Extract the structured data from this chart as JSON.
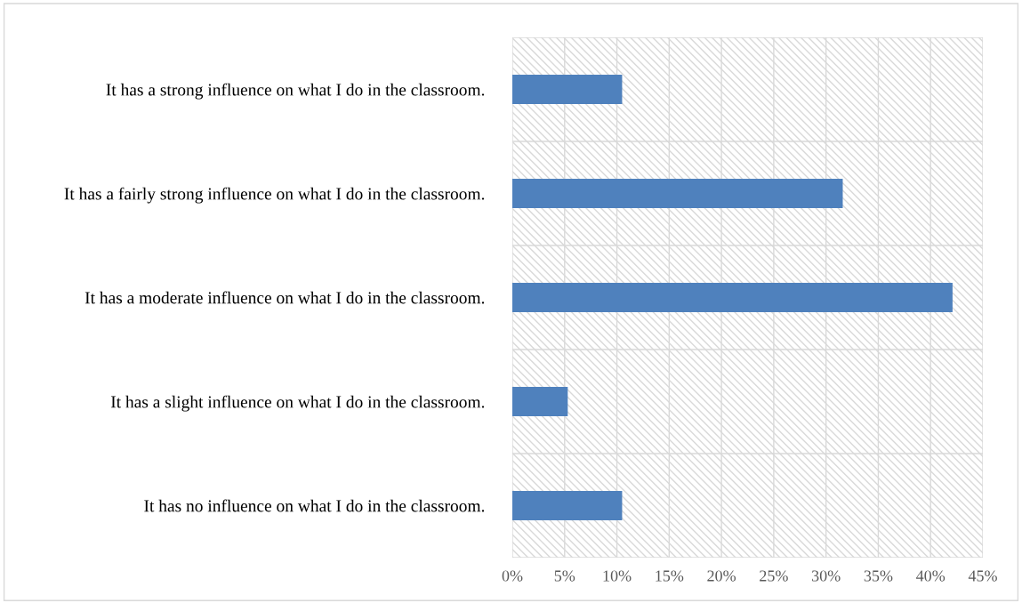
{
  "chart_data": {
    "type": "bar",
    "orientation": "horizontal",
    "categories": [
      "It has a strong influence on what I do in the classroom.",
      "It has a fairly strong influence on what I do in the classroom.",
      "It has a moderate influence on what I do in the classroom.",
      "It has a slight influence on what I do in the classroom.",
      "It has no influence on what I do in the classroom."
    ],
    "values": [
      10.5,
      31.6,
      42.1,
      5.3,
      10.5
    ],
    "color": "#4f81bd",
    "xlim": [
      0,
      45
    ],
    "xticks": [
      {
        "value": 0,
        "label": "0%"
      },
      {
        "value": 5,
        "label": "5%"
      },
      {
        "value": 10,
        "label": "10%"
      },
      {
        "value": 15,
        "label": "15%"
      },
      {
        "value": 20,
        "label": "20%"
      },
      {
        "value": 25,
        "label": "25%"
      },
      {
        "value": 30,
        "label": "30%"
      },
      {
        "value": 35,
        "label": "35%"
      },
      {
        "value": 40,
        "label": "40%"
      },
      {
        "value": 45,
        "label": "45%"
      }
    ],
    "grid": true,
    "legend": false
  }
}
